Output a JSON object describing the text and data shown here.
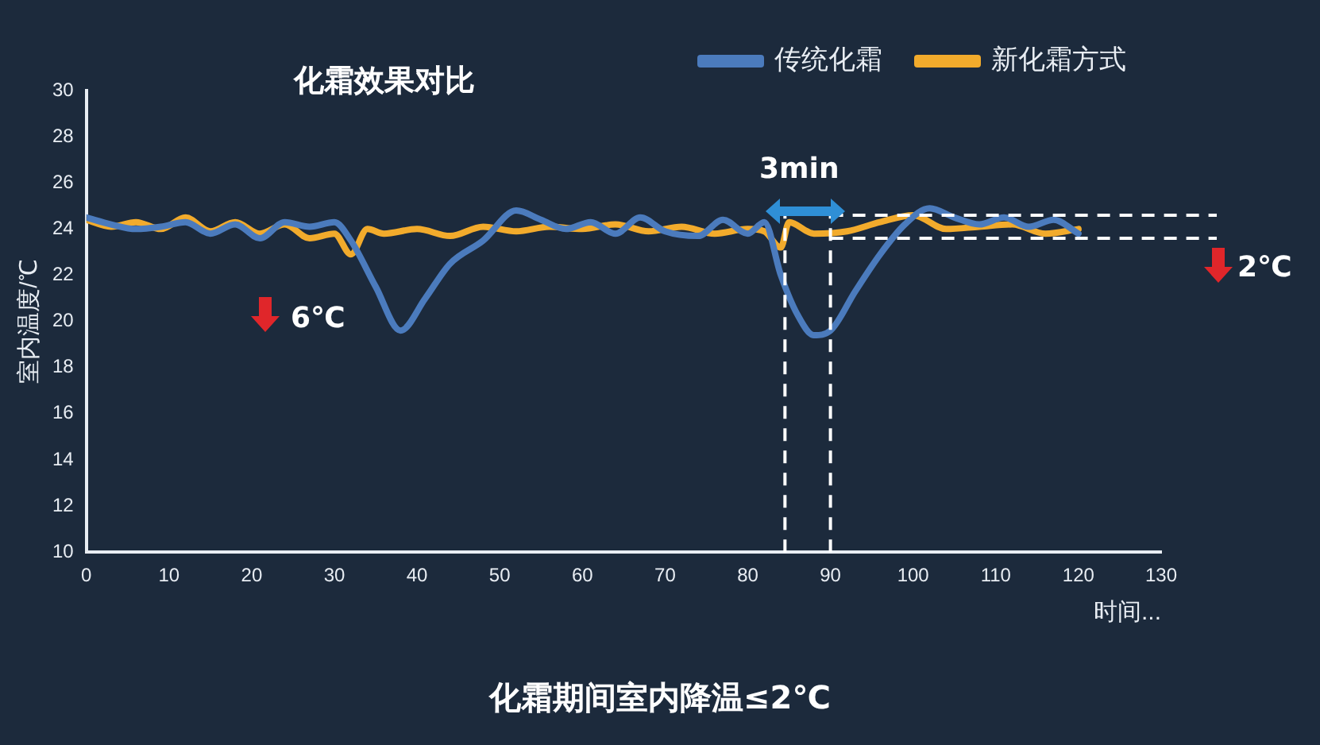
{
  "chart_data": {
    "type": "line",
    "title": "化霜效果对比",
    "ylabel": "室内温度/℃",
    "xlabel": "时间...",
    "xlim": [
      0,
      130
    ],
    "xticks": [
      0,
      10,
      20,
      30,
      40,
      50,
      60,
      70,
      80,
      90,
      100,
      110,
      120,
      130
    ],
    "ylim": [
      10,
      30
    ],
    "yticks": [
      10,
      12,
      14,
      16,
      18,
      20,
      22,
      24,
      26,
      28,
      30
    ],
    "grid": false,
    "legend": "top right",
    "marker": "none",
    "line_style": "solid",
    "series": [
      {
        "name": "传统化霜",
        "color": "#4b7bbd",
        "x": [
          0,
          3,
          6,
          9,
          12,
          15,
          18,
          21,
          24,
          27,
          30,
          32,
          35,
          38,
          41,
          44,
          48,
          52,
          55,
          58,
          61,
          64,
          67,
          70,
          74,
          77,
          80,
          82,
          84,
          86,
          88,
          90,
          93,
          96,
          99,
          102,
          105,
          108,
          111,
          114,
          117,
          120
        ],
        "values": [
          24.5,
          24.2,
          24.0,
          24.1,
          24.3,
          23.8,
          24.2,
          23.6,
          24.3,
          24.1,
          24.3,
          23.5,
          21.5,
          19.6,
          21.0,
          22.5,
          23.5,
          24.8,
          24.4,
          24.0,
          24.3,
          23.8,
          24.5,
          23.9,
          23.7,
          24.4,
          23.8,
          24.3,
          22.0,
          20.3,
          19.4,
          19.6,
          21.3,
          22.9,
          24.2,
          24.9,
          24.5,
          24.2,
          24.5,
          24.1,
          24.4,
          23.8
        ]
      },
      {
        "name": "新化霜方式",
        "color": "#f2ab2c",
        "x": [
          0,
          3,
          6,
          9,
          12,
          15,
          18,
          21,
          24,
          27,
          30,
          32,
          34,
          36,
          40,
          44,
          48,
          52,
          56,
          60,
          64,
          68,
          72,
          76,
          80,
          82,
          84,
          85,
          88,
          92,
          96,
          100,
          104,
          108,
          112,
          116,
          120
        ],
        "values": [
          24.4,
          24.1,
          24.3,
          24.0,
          24.5,
          23.9,
          24.3,
          23.8,
          24.2,
          23.6,
          23.8,
          22.9,
          24.0,
          23.8,
          24.0,
          23.7,
          24.1,
          23.9,
          24.1,
          24.0,
          24.2,
          23.9,
          24.1,
          23.8,
          24.0,
          23.9,
          23.2,
          24.3,
          23.8,
          23.9,
          24.3,
          24.6,
          24.0,
          24.1,
          24.2,
          23.8,
          24.0
        ]
      }
    ],
    "ref_lines": [
      {
        "axis": "x",
        "value": 84.5,
        "color": "#ffffff",
        "line_style": "dashed"
      },
      {
        "axis": "x",
        "value": 90,
        "color": "#ffffff",
        "line_style": "dashed"
      },
      {
        "axis": "y",
        "value": 24.6,
        "color": "#ffffff",
        "line_style": "dashed"
      },
      {
        "axis": "y",
        "value": 23.6,
        "color": "#ffffff",
        "line_style": "dashed"
      }
    ],
    "annotations": [
      "3min",
      "6℃",
      "2℃",
      "化霜期间室内降温≤2℃"
    ]
  }
}
